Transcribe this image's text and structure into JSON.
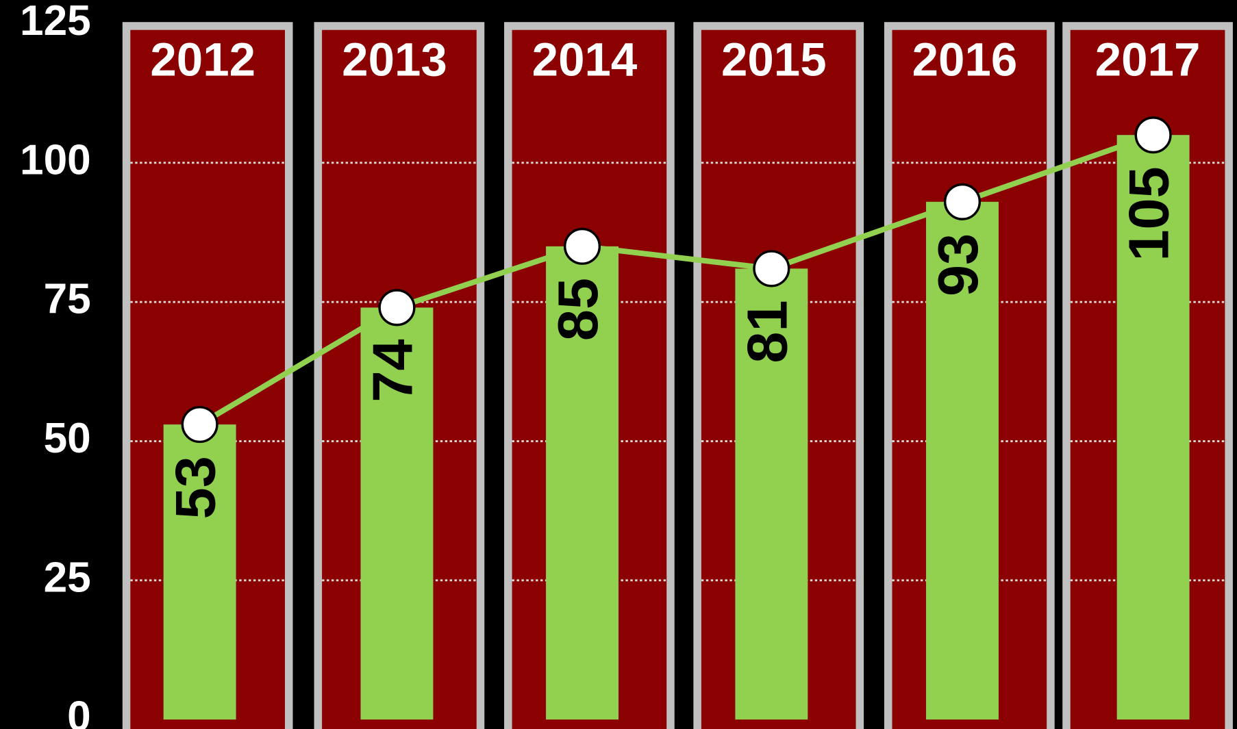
{
  "chart_data": {
    "type": "bar_line",
    "categories": [
      "2012",
      "2013",
      "2014",
      "2015",
      "2016",
      "2017"
    ],
    "values": [
      53,
      74,
      85,
      81,
      93,
      105
    ],
    "color": "#92d050",
    "panel_color": "#8b0000",
    "panel_border": "#c0c0c0",
    "line_color": "#92d050",
    "ylim": [
      0,
      125
    ],
    "yticks": [
      0,
      25,
      50,
      75,
      100,
      125
    ],
    "grid": true
  }
}
